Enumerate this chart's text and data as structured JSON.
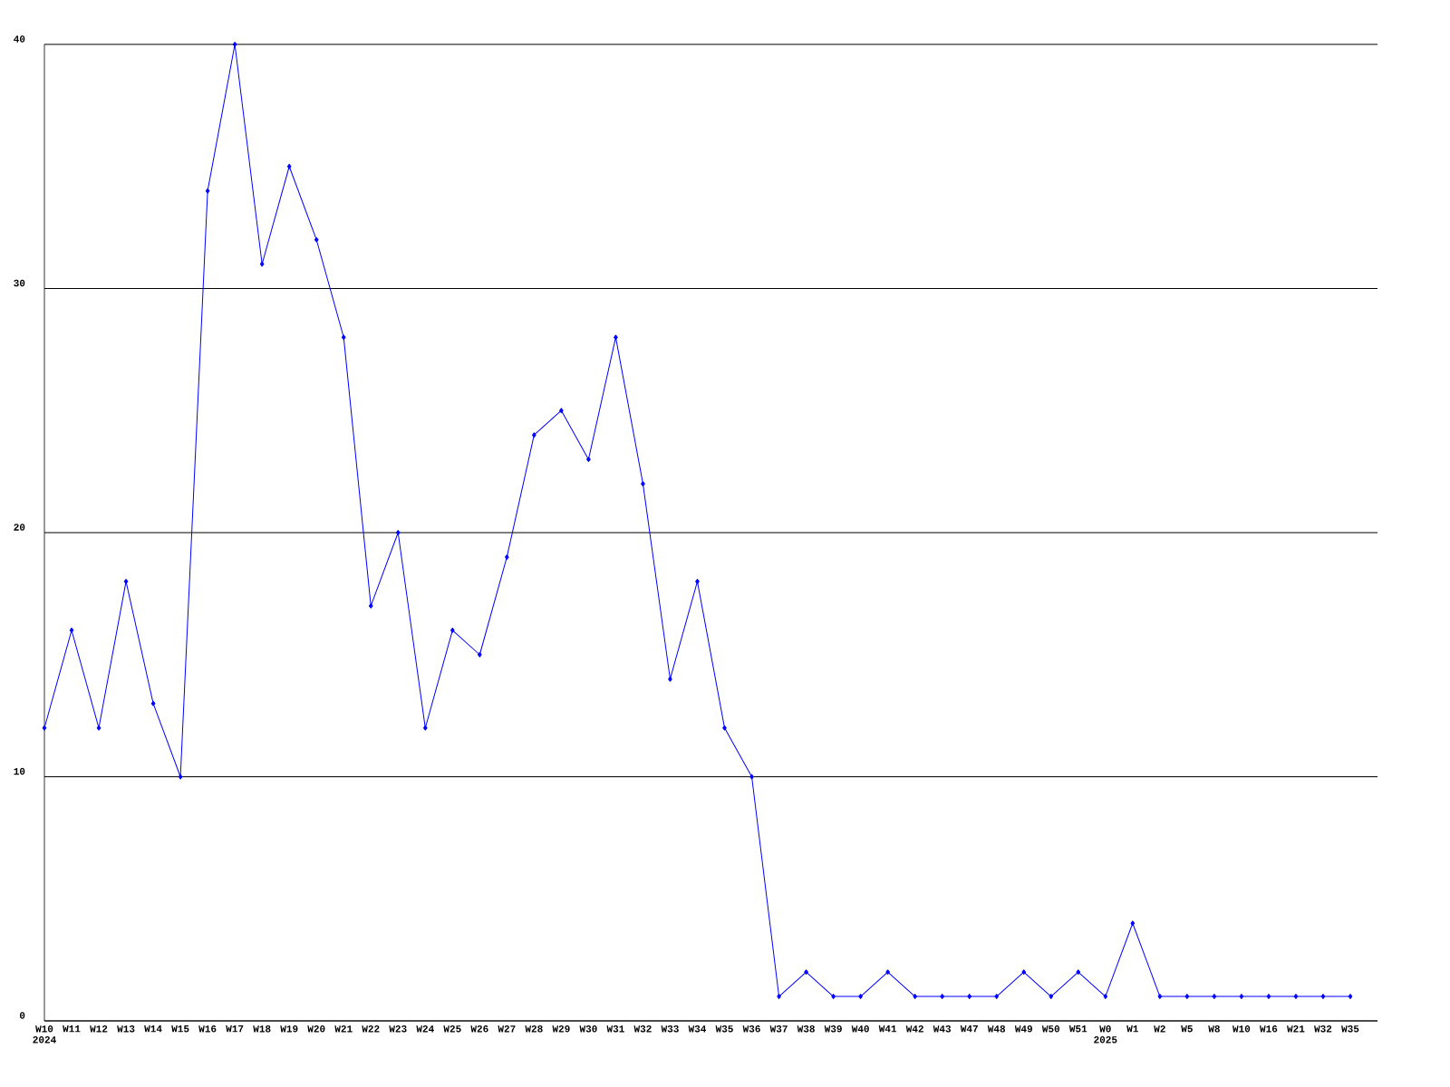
{
  "chart_data": {
    "type": "line",
    "categories": [
      "W10 2024",
      "W11",
      "W12",
      "W13",
      "W14",
      "W15",
      "W16",
      "W17",
      "W18",
      "W19",
      "W20",
      "W21",
      "W22",
      "W23",
      "W24",
      "W25",
      "W26",
      "W27",
      "W28",
      "W29",
      "W30",
      "W31",
      "W32",
      "W33",
      "W34",
      "W35",
      "W36",
      "W37",
      "W38",
      "W39",
      "W40",
      "W41",
      "W42",
      "W43",
      "W47",
      "W48",
      "W49",
      "W50",
      "W51",
      "W0 2025",
      "W1",
      "W2",
      "W5",
      "W8",
      "W10",
      "W16",
      "W21",
      "W32",
      "W35"
    ],
    "series": [
      {
        "color": "#0000ff",
        "values": [
          12,
          16,
          12,
          18,
          13,
          10,
          34,
          40,
          31,
          35,
          32,
          28,
          17,
          20,
          12,
          16,
          15,
          19,
          24,
          25,
          23,
          28,
          22,
          14,
          18,
          12,
          10,
          1,
          2,
          1,
          1,
          2,
          1,
          1,
          1,
          1,
          2,
          1,
          2,
          1,
          4,
          1,
          1,
          1,
          1,
          1,
          1,
          1,
          1
        ]
      }
    ],
    "ylim": [
      0,
      40
    ],
    "yticks": [
      0,
      10,
      20,
      30,
      40
    ],
    "grid": "y",
    "marker": "diamond",
    "line_style": "solid"
  }
}
